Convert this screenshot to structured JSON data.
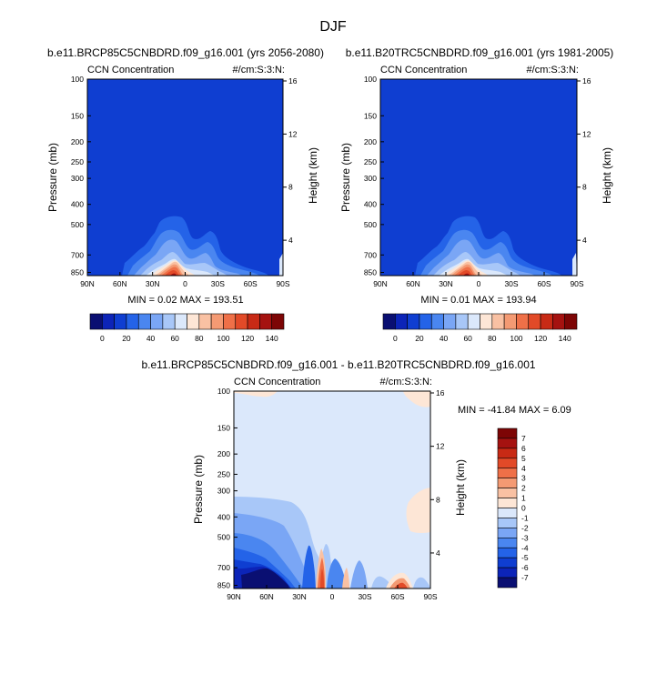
{
  "figure": {
    "main_title": "DJF"
  },
  "chart_data": [
    {
      "type": "heatmap",
      "panel": "top-left",
      "title": "b.e11.BRCP85C5CNBDRD.f09_g16.001 (yrs 2056-2080)",
      "left_label": "CCN Concentration",
      "right_label": "#/cm:S:3:N:",
      "x_ticks": [
        "90N",
        "60N",
        "30N",
        "0",
        "30S",
        "60S",
        "90S"
      ],
      "y_ticks": [
        "100",
        "150",
        "200",
        "250",
        "300",
        "400",
        "500",
        "700",
        "850"
      ],
      "y_ticks_values": [
        100,
        150,
        200,
        250,
        300,
        400,
        500,
        700,
        850
      ],
      "right_axis_label": "Height (km)",
      "right_ticks": [
        "4",
        "8",
        "12",
        "16"
      ],
      "right_ticks_values": [
        4,
        8,
        12,
        16
      ],
      "ylabel": "Pressure (mb)",
      "stats_text": "MIN =   0.02  MAX = 193.51",
      "colorbar_ticks": [
        "0",
        "20",
        "40",
        "60",
        "80",
        "100",
        "120",
        "140"
      ],
      "colorbar_levels": [
        -10,
        0,
        10,
        20,
        30,
        40,
        50,
        60,
        70,
        80,
        90,
        100,
        110,
        120,
        130,
        140,
        150
      ],
      "colorbar_colors": [
        "#0a0f72",
        "#0c24b8",
        "#0f3ed1",
        "#2463e8",
        "#4a86f0",
        "#7aa6f5",
        "#a8c7f8",
        "#dbe8fb",
        "#fde6d6",
        "#f9c1a3",
        "#f49a73",
        "#ef7048",
        "#e24a28",
        "#c82a15",
        "#a51210",
        "#7d0505"
      ],
      "background_level_color": "#0f3ed1"
    },
    {
      "type": "heatmap",
      "panel": "top-right",
      "title": "b.e11.B20TRC5CNBDRD.f09_g16.001 (yrs 1981-2005)",
      "left_label": "CCN Concentration",
      "right_label": "#/cm:S:3:N:",
      "x_ticks": [
        "90N",
        "60N",
        "30N",
        "0",
        "30S",
        "60S",
        "90S"
      ],
      "y_ticks": [
        "100",
        "150",
        "200",
        "250",
        "300",
        "400",
        "500",
        "700",
        "850"
      ],
      "y_ticks_values": [
        100,
        150,
        200,
        250,
        300,
        400,
        500,
        700,
        850
      ],
      "right_axis_label": "Height (km)",
      "right_ticks": [
        "4",
        "8",
        "12",
        "16"
      ],
      "right_ticks_values": [
        4,
        8,
        12,
        16
      ],
      "ylabel": "Pressure (mb)",
      "stats_text": "MIN =   0.01  MAX = 193.94",
      "colorbar_ticks": [
        "0",
        "20",
        "40",
        "60",
        "80",
        "100",
        "120",
        "140"
      ],
      "colorbar_levels": [
        -10,
        0,
        10,
        20,
        30,
        40,
        50,
        60,
        70,
        80,
        90,
        100,
        110,
        120,
        130,
        140,
        150
      ],
      "colorbar_colors": [
        "#0a0f72",
        "#0c24b8",
        "#0f3ed1",
        "#2463e8",
        "#4a86f0",
        "#7aa6f5",
        "#a8c7f8",
        "#dbe8fb",
        "#fde6d6",
        "#f9c1a3",
        "#f49a73",
        "#ef7048",
        "#e24a28",
        "#c82a15",
        "#a51210",
        "#7d0505"
      ],
      "background_level_color": "#0f3ed1"
    },
    {
      "type": "heatmap",
      "panel": "bottom",
      "title": "b.e11.BRCP85C5CNBDRD.f09_g16.001 - b.e11.B20TRC5CNBDRD.f09_g16.001",
      "left_label": "CCN Concentration",
      "right_label": "#/cm:S:3:N:",
      "x_ticks": [
        "90N",
        "60N",
        "30N",
        "0",
        "30S",
        "60S",
        "90S"
      ],
      "y_ticks": [
        "100",
        "150",
        "200",
        "250",
        "300",
        "400",
        "500",
        "700",
        "850"
      ],
      "y_ticks_values": [
        100,
        150,
        200,
        250,
        300,
        400,
        500,
        700,
        850
      ],
      "right_axis_label": "Height (km)",
      "right_ticks": [
        "4",
        "8",
        "12",
        "16"
      ],
      "right_ticks_values": [
        4,
        8,
        12,
        16
      ],
      "ylabel": "Pressure (mb)",
      "stats_text": "MIN = -41.84  MAX =   6.09",
      "colorbar_ticks": [
        "7",
        "6",
        "5",
        "4",
        "3",
        "2",
        "1",
        "0",
        "-1",
        "-2",
        "-3",
        "-4",
        "-5",
        "-6",
        "-7"
      ],
      "colorbar_colors": [
        "#7d0505",
        "#a51210",
        "#c82a15",
        "#e24a28",
        "#ef7048",
        "#f49a73",
        "#f9c1a3",
        "#fde6d6",
        "#dbe8fb",
        "#a8c7f8",
        "#7aa6f5",
        "#4a86f0",
        "#2463e8",
        "#0f3ed1",
        "#0c24b8",
        "#0a0f72"
      ],
      "background_level_color": "#dbe8fb"
    }
  ]
}
